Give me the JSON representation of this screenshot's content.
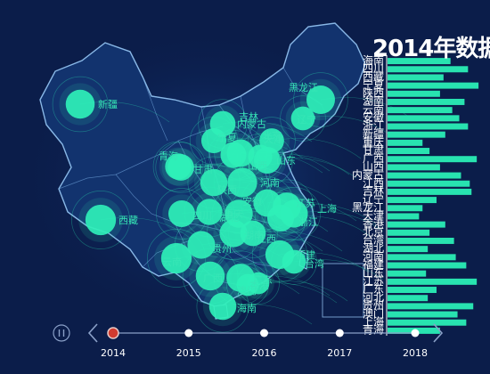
{
  "chart_data": {
    "type": "bar",
    "title": "2014年数据",
    "colors": {
      "background": "#0b1d4a",
      "bar": "#28e3b0",
      "map_fill": "#12336e",
      "map_stroke": "#9fd1ff",
      "bubble": "#2ff0b8",
      "city_label": "#36e6b6",
      "timeline": "#8aa0c8",
      "timeline_active": "#d23b2f"
    },
    "categories": [
      "海南",
      "四川",
      "西藏",
      "宁夏",
      "陕西",
      "湖南",
      "云南",
      "安徽",
      "浙江",
      "新疆",
      "重庆",
      "甘肃",
      "广西",
      "山西",
      "内蒙古",
      "江西",
      "吉林",
      "辽宁",
      "黑龙江",
      "天津",
      "香港",
      "北京",
      "台湾",
      "湖北",
      "河南",
      "福建",
      "山东",
      "江苏",
      "广东",
      "河北",
      "贵州",
      "澳门",
      "上海",
      "青海"
    ],
    "values": [
      360,
      460,
      320,
      520,
      300,
      440,
      370,
      410,
      460,
      330,
      200,
      240,
      510,
      300,
      420,
      470,
      480,
      280,
      200,
      180,
      330,
      240,
      380,
      230,
      390,
      450,
      220,
      510,
      280,
      230,
      490,
      400,
      450,
      300
    ],
    "xlim": [
      0,
      550
    ],
    "map_cities": [
      {
        "name": "新疆",
        "value": 390
      },
      {
        "name": "西藏",
        "value": 460
      },
      {
        "name": "内蒙古",
        "value": 260
      },
      {
        "name": "黑龙江",
        "value": 370
      },
      {
        "name": "吉林",
        "value": 200
      },
      {
        "name": "辽宁",
        "value": 230
      },
      {
        "name": "宁夏",
        "value": 240
      },
      {
        "name": "北京",
        "value": 330
      },
      {
        "name": "天津",
        "value": 210
      },
      {
        "name": "山西",
        "value": 270
      },
      {
        "name": "山东",
        "value": 300
      },
      {
        "name": "甘肃",
        "value": 290
      },
      {
        "name": "陕西",
        "value": 320
      },
      {
        "name": "河南",
        "value": 420
      },
      {
        "name": "青海",
        "value": 280
      },
      {
        "name": "四川",
        "value": 300
      },
      {
        "name": "湖北",
        "value": 350
      },
      {
        "name": "安徽",
        "value": 330
      },
      {
        "name": "江苏",
        "value": 360
      },
      {
        "name": "上海",
        "value": 340
      },
      {
        "name": "浙江",
        "value": 300
      },
      {
        "name": "重庆",
        "value": 280
      },
      {
        "name": "湖南",
        "value": 340
      },
      {
        "name": "江西",
        "value": 260
      },
      {
        "name": "贵州",
        "value": 340
      },
      {
        "name": "云南",
        "value": 460
      },
      {
        "name": "福建",
        "value": 380
      },
      {
        "name": "广西",
        "value": 390
      },
      {
        "name": "广东",
        "value": 360
      },
      {
        "name": "台湾",
        "value": 200
      },
      {
        "name": "香港",
        "value": 150
      },
      {
        "name": "澳门",
        "value": 150
      },
      {
        "name": "海南",
        "value": 320
      }
    ],
    "timeline": {
      "years": [
        "2014",
        "2015",
        "2016",
        "2017",
        "2018"
      ],
      "active_index": 0,
      "playing": false
    }
  }
}
